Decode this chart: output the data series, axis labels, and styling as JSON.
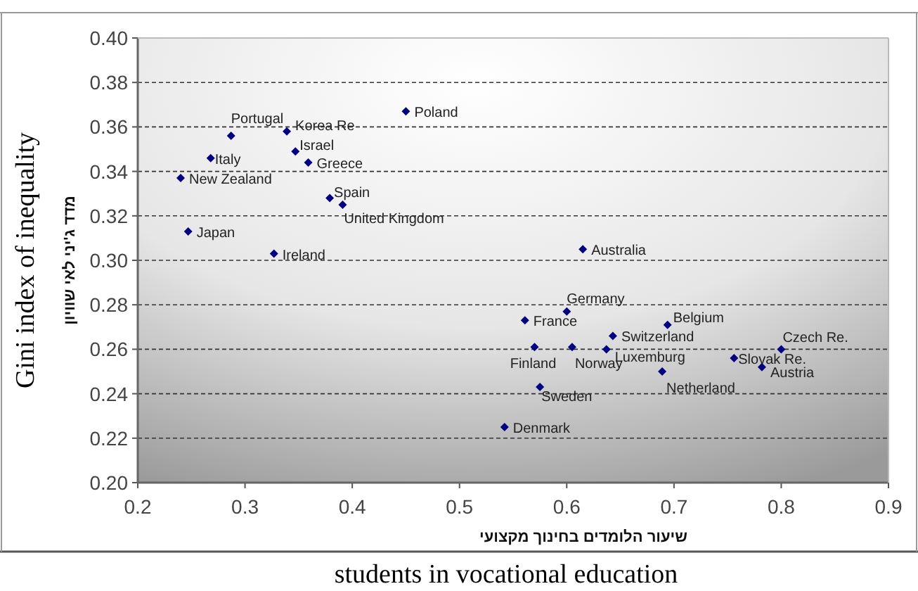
{
  "chart_data": {
    "type": "scatter",
    "xlabel": "שיעור הלומדים בחינוך מקצועי",
    "ylabel": "מדד ג'יני לאי שוויון",
    "x": [
      0.287,
      0.339,
      0.45,
      0.268,
      0.347,
      0.359,
      0.24,
      0.379,
      0.391,
      0.247,
      0.327,
      0.615,
      0.6,
      0.561,
      0.694,
      0.643,
      0.57,
      0.605,
      0.637,
      0.8,
      0.756,
      0.782,
      0.689,
      0.575,
      0.542
    ],
    "values": [
      0.356,
      0.358,
      0.367,
      0.346,
      0.349,
      0.344,
      0.337,
      0.328,
      0.325,
      0.313,
      0.303,
      0.305,
      0.277,
      0.273,
      0.271,
      0.266,
      0.261,
      0.261,
      0.26,
      0.26,
      0.256,
      0.252,
      0.25,
      0.243,
      0.225
    ],
    "color": "#000080",
    "marker": "diamond",
    "xlim": [
      0.2,
      0.9
    ],
    "ylim": [
      0.2,
      0.4
    ],
    "xticks": [
      0.2,
      0.3,
      0.4,
      0.5,
      0.6,
      0.7,
      0.8,
      0.9
    ],
    "yticks": [
      {
        "value": 0.2,
        "label": "0.20"
      },
      {
        "value": 0.22,
        "label": "0.22"
      },
      {
        "value": 0.24,
        "label": "0.24"
      },
      {
        "value": 0.26,
        "label": "0.26"
      },
      {
        "value": 0.28,
        "label": "0.28"
      },
      {
        "value": 0.3,
        "label": "0.30"
      },
      {
        "value": 0.32,
        "label": "0.32"
      },
      {
        "value": 0.34,
        "label": "0.34"
      },
      {
        "value": 0.36,
        "label": "0.36"
      },
      {
        "value": 0.38,
        "label": "0.38"
      },
      {
        "value": 0.4,
        "label": "0.40"
      }
    ],
    "grid": "y",
    "line_style": "dashed",
    "annotations": [
      "Gini index of inequality",
      "students in vocational education",
      {
        "text": "Portugal",
        "x": 0.287,
        "y": 0.356
      },
      {
        "text": "Korea Re",
        "x": 0.339,
        "y": 0.358
      },
      {
        "text": "Poland",
        "x": 0.45,
        "y": 0.367
      },
      {
        "text": "Italy",
        "x": 0.268,
        "y": 0.346
      },
      {
        "text": "Israel",
        "x": 0.347,
        "y": 0.349
      },
      {
        "text": "Greece",
        "x": 0.359,
        "y": 0.344
      },
      {
        "text": "New Zealand",
        "x": 0.24,
        "y": 0.337
      },
      {
        "text": "Spain",
        "x": 0.379,
        "y": 0.328
      },
      {
        "text": "United Kingdom",
        "x": 0.391,
        "y": 0.325
      },
      {
        "text": "Japan",
        "x": 0.247,
        "y": 0.313
      },
      {
        "text": "Ireland",
        "x": 0.327,
        "y": 0.303
      },
      {
        "text": "Australia",
        "x": 0.615,
        "y": 0.305
      },
      {
        "text": "Germany",
        "x": 0.6,
        "y": 0.277
      },
      {
        "text": "France",
        "x": 0.561,
        "y": 0.273
      },
      {
        "text": "Belgium",
        "x": 0.694,
        "y": 0.271
      },
      {
        "text": "Switzerland",
        "x": 0.643,
        "y": 0.266
      },
      {
        "text": "Finland",
        "x": 0.57,
        "y": 0.261
      },
      {
        "text": "Norway",
        "x": 0.605,
        "y": 0.261
      },
      {
        "text": "Luxemburg",
        "x": 0.637,
        "y": 0.26
      },
      {
        "text": "Czech Re.",
        "x": 0.8,
        "y": 0.26
      },
      {
        "text": "Slovak Re.",
        "x": 0.756,
        "y": 0.256
      },
      {
        "text": "Austria",
        "x": 0.782,
        "y": 0.252
      },
      {
        "text": "Netherland",
        "x": 0.689,
        "y": 0.25
      },
      {
        "text": "Sweden",
        "x": 0.575,
        "y": 0.243
      },
      {
        "text": "Denmark",
        "x": 0.542,
        "y": 0.225
      }
    ]
  }
}
